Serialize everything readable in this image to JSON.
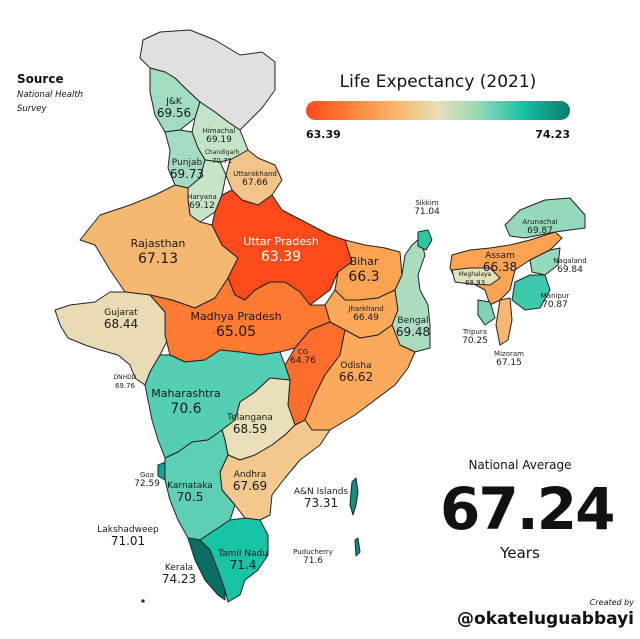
{
  "title": "Life Expectancy (2021)",
  "source": {
    "heading": "Source",
    "detail": "National Health Survey"
  },
  "legend": {
    "min": "63.39",
    "max": "74.23",
    "colors": [
      "#fc4a1a",
      "#fd8c3c",
      "#f5c07a",
      "#e9e0b8",
      "#8fd9b6",
      "#17c4a6",
      "#0b7a6c"
    ]
  },
  "national_average": {
    "label": "National Average",
    "value": "67.24",
    "unit": "Years"
  },
  "credit": {
    "label": "Created by",
    "handle": "@okateluguabbayi"
  },
  "no_data_color": "#e0e0e0",
  "states": [
    {
      "id": "jk",
      "name": "J&K",
      "value": "69.56",
      "color": "#9fdcc0"
    },
    {
      "id": "himachal",
      "name": "Himachal",
      "value": "69.19",
      "color": "#c4e4c8"
    },
    {
      "id": "chandigarh",
      "name": "Chandigarh",
      "value": "70.71",
      "color": "#8fd9b6"
    },
    {
      "id": "punjab",
      "name": "Punjab",
      "value": "69.73",
      "color": "#a3dcc2"
    },
    {
      "id": "uttarakhand",
      "name": "Uttarakhand",
      "value": "67.66",
      "color": "#f2c48a"
    },
    {
      "id": "haryana",
      "name": "Haryana",
      "value": "69.12",
      "color": "#c8e4c6"
    },
    {
      "id": "rajasthan",
      "name": "Rajasthan",
      "value": "67.13",
      "color": "#f4b870"
    },
    {
      "id": "uttar-pradesh",
      "name": "Uttar Pradesh",
      "value": "63.39",
      "color": "#fc4a1a"
    },
    {
      "id": "bihar",
      "name": "Bihar",
      "value": "66.3",
      "color": "#fca352"
    },
    {
      "id": "sikkim",
      "name": "Sikkim",
      "value": "71.04",
      "color": "#2cc5a8"
    },
    {
      "id": "arunachal",
      "name": "Arunachal",
      "value": "69.87",
      "color": "#96d8bc"
    },
    {
      "id": "assam",
      "name": "Assam",
      "value": "66.38",
      "color": "#fca352"
    },
    {
      "id": "nagaland",
      "name": "Nagaland",
      "value": "69.84",
      "color": "#96d8bc"
    },
    {
      "id": "meghalaya",
      "name": "Meghalaya",
      "value": "68.93",
      "color": "#e2e2bc"
    },
    {
      "id": "manipur",
      "name": "Manipur",
      "value": "70.87",
      "color": "#3ec9ad"
    },
    {
      "id": "tripura",
      "name": "Tripura",
      "value": "70.25",
      "color": "#7ed4b3"
    },
    {
      "id": "mizoram",
      "name": "Mizoram",
      "value": "67.15",
      "color": "#f4b870"
    },
    {
      "id": "jharkhand",
      "name": "Jharkhand",
      "value": "66.49",
      "color": "#fca95a"
    },
    {
      "id": "bengal",
      "name": "Bengal",
      "value": "69.48",
      "color": "#aadcc0"
    },
    {
      "id": "gujarat",
      "name": "Gujarat",
      "value": "68.44",
      "color": "#e9dcb4"
    },
    {
      "id": "madhya-pradesh",
      "name": "Madhya Pradesh",
      "value": "65.05",
      "color": "#fd7a32"
    },
    {
      "id": "cg",
      "name": "CG",
      "value": "64.76",
      "color": "#fd6e2c"
    },
    {
      "id": "odisha",
      "name": "Odisha",
      "value": "66.62",
      "color": "#fbaa5c"
    },
    {
      "id": "dnhdd",
      "name": "DNHDD",
      "value": "69.76",
      "color": "#9fdcc0"
    },
    {
      "id": "maharashtra",
      "name": "Maharashtra",
      "value": "70.6",
      "color": "#55cfb3"
    },
    {
      "id": "telangana",
      "name": "Telangana",
      "value": "68.59",
      "color": "#e9dfb8"
    },
    {
      "id": "goa",
      "name": "Goa",
      "value": "72.59",
      "color": "#14a395"
    },
    {
      "id": "karnataka",
      "name": "Karnataka",
      "value": "70.5",
      "color": "#5ccfb4"
    },
    {
      "id": "andhra",
      "name": "Andhra",
      "value": "67.69",
      "color": "#f2c88e"
    },
    {
      "id": "an-islands",
      "name": "A&N Islands",
      "value": "73.31",
      "color": "#0e8f80"
    },
    {
      "id": "lakshadweep",
      "name": "Lakshadweep",
      "value": "71.01",
      "color": "#2cc5a8"
    },
    {
      "id": "tamil-nadu",
      "name": "Tamil Nadu",
      "value": "71.4",
      "color": "#18c4a6"
    },
    {
      "id": "puducherry",
      "name": "Puducherry",
      "value": "71.6",
      "color": "#18c0a2"
    },
    {
      "id": "kerala",
      "name": "Kerala",
      "value": "74.23",
      "color": "#0b6e63"
    }
  ]
}
